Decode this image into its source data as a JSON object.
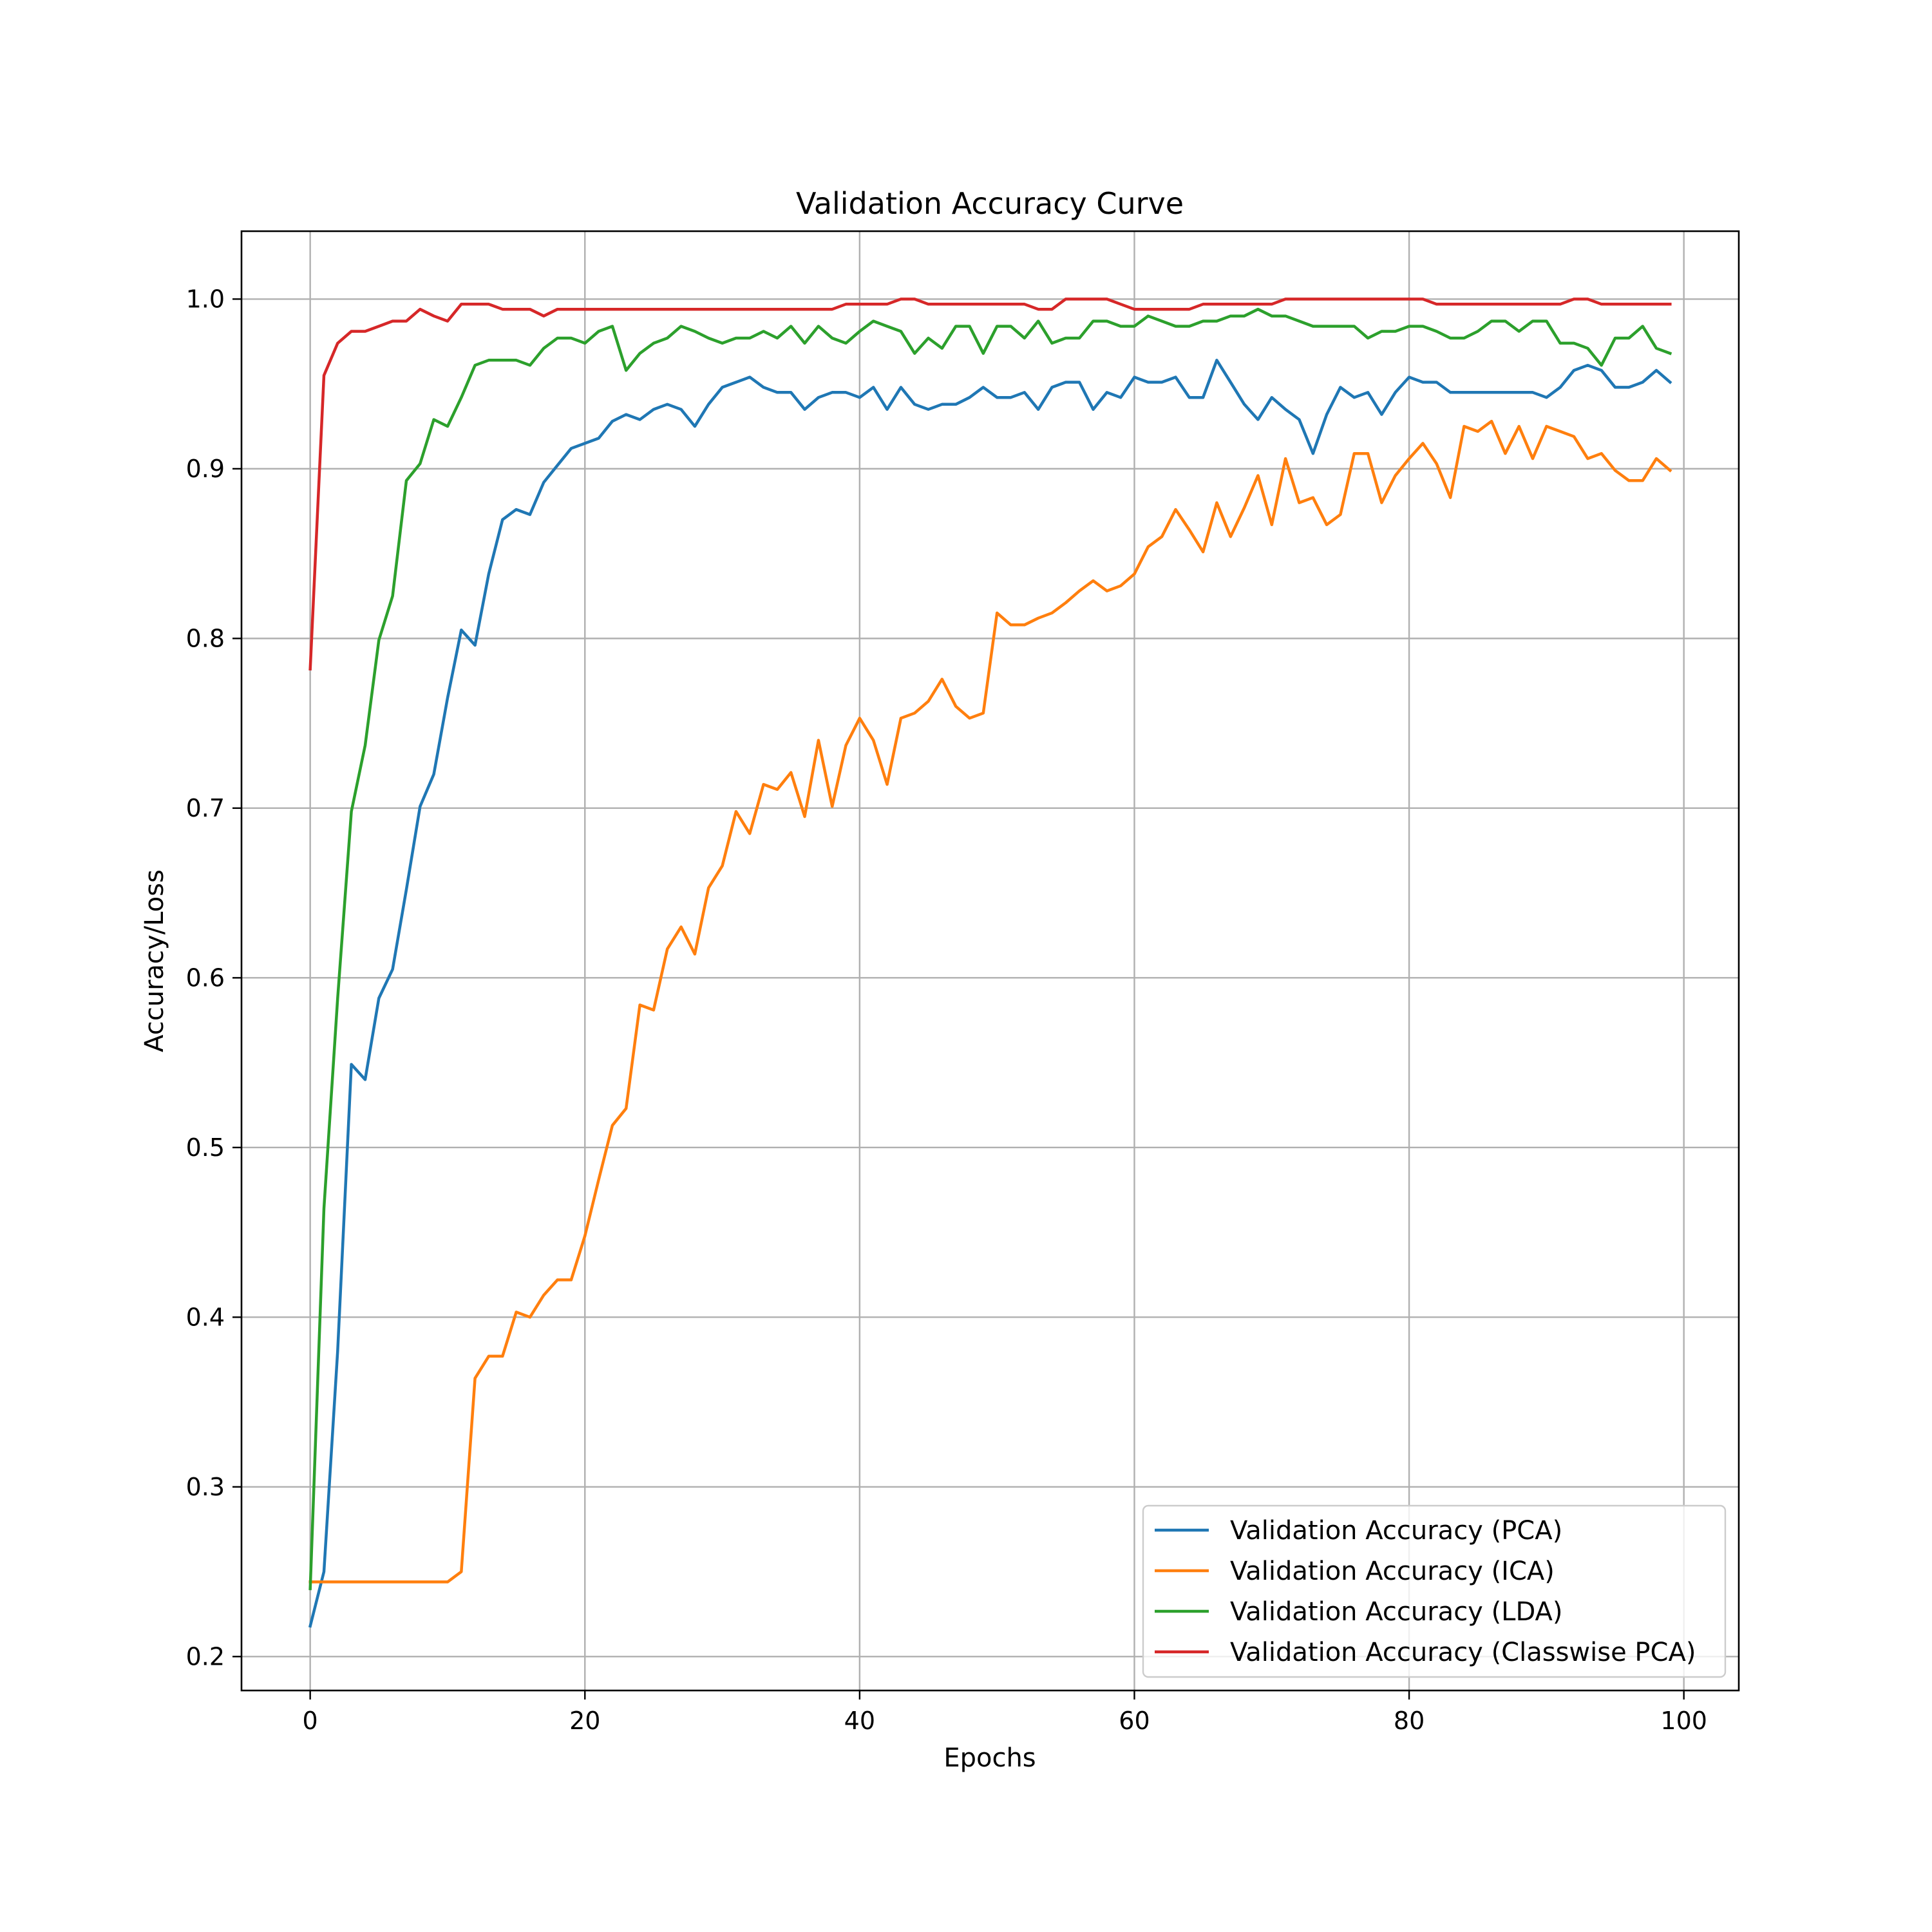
{
  "chart_data": {
    "type": "line",
    "title": "Validation Accuracy Curve",
    "xlabel": "Epochs",
    "ylabel": "Accuracy/Loss",
    "xlim": [
      -5,
      104
    ],
    "ylim": [
      0.18,
      1.04
    ],
    "x_ticks": [
      0,
      20,
      40,
      60,
      80,
      100
    ],
    "y_ticks": [
      0.2,
      0.3,
      0.4,
      0.5,
      0.6,
      0.7,
      0.8,
      0.9,
      1.0
    ],
    "x_tick_labels": [
      "0",
      "20",
      "40",
      "60",
      "80",
      "100"
    ],
    "y_tick_labels": [
      "0.2",
      "0.3",
      "0.4",
      "0.5",
      "0.6",
      "0.7",
      "0.8",
      "0.9",
      "1.0"
    ],
    "grid": true,
    "legend_position": "lower-right",
    "x": [
      0,
      1,
      2,
      3,
      4,
      5,
      6,
      7,
      8,
      9,
      10,
      11,
      12,
      13,
      14,
      15,
      16,
      17,
      18,
      19,
      20,
      21,
      22,
      23,
      24,
      25,
      26,
      27,
      28,
      29,
      30,
      31,
      32,
      33,
      34,
      35,
      36,
      37,
      38,
      39,
      40,
      41,
      42,
      43,
      44,
      45,
      46,
      47,
      48,
      49,
      50,
      51,
      52,
      53,
      54,
      55,
      56,
      57,
      58,
      59,
      60,
      61,
      62,
      63,
      64,
      65,
      66,
      67,
      68,
      69,
      70,
      71,
      72,
      73,
      74,
      75,
      76,
      77,
      78,
      79,
      80,
      81,
      82,
      83,
      84,
      85,
      86,
      87,
      88,
      89,
      90,
      91,
      92,
      93,
      94,
      95,
      96,
      97,
      98,
      99
    ],
    "series": [
      {
        "name": "Validation Accuracy (PCA)",
        "color": "#1f77b4",
        "values": [
          0.218,
          0.25,
          0.38,
          0.549,
          0.54,
          0.588,
          0.605,
          0.652,
          0.701,
          0.72,
          0.765,
          0.805,
          0.796,
          0.838,
          0.87,
          0.876,
          0.873,
          0.892,
          0.902,
          0.912,
          0.915,
          0.918,
          0.928,
          0.932,
          0.929,
          0.935,
          0.938,
          0.935,
          0.925,
          0.938,
          0.948,
          0.951,
          0.954,
          0.948,
          0.945,
          0.945,
          0.935,
          0.942,
          0.945,
          0.945,
          0.942,
          0.948,
          0.935,
          0.948,
          0.938,
          0.935,
          0.938,
          0.938,
          0.942,
          0.948,
          0.942,
          0.942,
          0.945,
          0.935,
          0.948,
          0.951,
          0.951,
          0.935,
          0.945,
          0.942,
          0.954,
          0.951,
          0.951,
          0.954,
          0.942,
          0.942,
          0.964,
          0.951,
          0.938,
          0.929,
          0.942,
          0.935,
          0.929,
          0.909,
          0.932,
          0.948,
          0.942,
          0.945,
          0.932,
          0.945,
          0.954,
          0.951,
          0.951,
          0.945,
          0.945,
          0.945,
          0.945,
          0.945,
          0.945,
          0.945,
          0.942,
          0.948,
          0.958,
          0.961,
          0.958,
          0.948,
          0.948,
          0.951,
          0.958,
          0.951
        ]
      },
      {
        "name": "Validation Accuracy (ICA)",
        "color": "#ff7f0e",
        "values": [
          0.244,
          0.244,
          0.244,
          0.244,
          0.244,
          0.244,
          0.244,
          0.244,
          0.244,
          0.244,
          0.244,
          0.25,
          0.364,
          0.377,
          0.377,
          0.403,
          0.4,
          0.413,
          0.422,
          0.422,
          0.448,
          0.481,
          0.513,
          0.523,
          0.584,
          0.581,
          0.617,
          0.63,
          0.614,
          0.653,
          0.666,
          0.698,
          0.685,
          0.714,
          0.711,
          0.721,
          0.695,
          0.74,
          0.701,
          0.737,
          0.753,
          0.74,
          0.714,
          0.753,
          0.756,
          0.763,
          0.776,
          0.76,
          0.753,
          0.756,
          0.815,
          0.808,
          0.808,
          0.812,
          0.815,
          0.821,
          0.828,
          0.834,
          0.828,
          0.831,
          0.838,
          0.854,
          0.86,
          0.876,
          0.864,
          0.851,
          0.88,
          0.86,
          0.877,
          0.896,
          0.867,
          0.906,
          0.88,
          0.883,
          0.867,
          0.873,
          0.909,
          0.909,
          0.88,
          0.896,
          0.906,
          0.915,
          0.903,
          0.883,
          0.925,
          0.922,
          0.928,
          0.909,
          0.925,
          0.906,
          0.925,
          0.922,
          0.919,
          0.906,
          0.909,
          0.899,
          0.893,
          0.893,
          0.906,
          0.899
        ]
      },
      {
        "name": "Validation Accuracy (LDA)",
        "color": "#2ca02c",
        "values": [
          0.24,
          0.464,
          0.588,
          0.698,
          0.737,
          0.799,
          0.825,
          0.893,
          0.903,
          0.929,
          0.925,
          0.942,
          0.961,
          0.964,
          0.964,
          0.964,
          0.961,
          0.971,
          0.977,
          0.977,
          0.974,
          0.981,
          0.984,
          0.958,
          0.968,
          0.974,
          0.977,
          0.984,
          0.981,
          0.977,
          0.974,
          0.977,
          0.977,
          0.981,
          0.977,
          0.984,
          0.974,
          0.984,
          0.977,
          0.974,
          0.981,
          0.987,
          0.984,
          0.981,
          0.968,
          0.977,
          0.971,
          0.984,
          0.984,
          0.968,
          0.984,
          0.984,
          0.977,
          0.987,
          0.974,
          0.977,
          0.977,
          0.987,
          0.987,
          0.984,
          0.984,
          0.99,
          0.987,
          0.984,
          0.984,
          0.987,
          0.987,
          0.99,
          0.99,
          0.994,
          0.99,
          0.99,
          0.987,
          0.984,
          0.984,
          0.984,
          0.984,
          0.977,
          0.981,
          0.981,
          0.984,
          0.984,
          0.981,
          0.977,
          0.977,
          0.981,
          0.987,
          0.987,
          0.981,
          0.987,
          0.987,
          0.974,
          0.974,
          0.971,
          0.961,
          0.977,
          0.977,
          0.984,
          0.971,
          0.968
        ]
      },
      {
        "name": "Validation Accuracy (Classwise PCA)",
        "color": "#d62728",
        "values": [
          0.782,
          0.955,
          0.974,
          0.981,
          0.981,
          0.984,
          0.987,
          0.987,
          0.994,
          0.99,
          0.987,
          0.997,
          0.997,
          0.997,
          0.994,
          0.994,
          0.994,
          0.99,
          0.994,
          0.994,
          0.994,
          0.994,
          0.994,
          0.994,
          0.994,
          0.994,
          0.994,
          0.994,
          0.994,
          0.994,
          0.994,
          0.994,
          0.994,
          0.994,
          0.994,
          0.994,
          0.994,
          0.994,
          0.994,
          0.997,
          0.997,
          0.997,
          0.997,
          1.0,
          1.0,
          0.997,
          0.997,
          0.997,
          0.997,
          0.997,
          0.997,
          0.997,
          0.997,
          0.994,
          0.994,
          1.0,
          1.0,
          1.0,
          1.0,
          0.997,
          0.994,
          0.994,
          0.994,
          0.994,
          0.994,
          0.997,
          0.997,
          0.997,
          0.997,
          0.997,
          0.997,
          1.0,
          1.0,
          1.0,
          1.0,
          1.0,
          1.0,
          1.0,
          1.0,
          1.0,
          1.0,
          1.0,
          0.997,
          0.997,
          0.997,
          0.997,
          0.997,
          0.997,
          0.997,
          0.997,
          0.997,
          0.997,
          1.0,
          1.0,
          0.997,
          0.997,
          0.997,
          0.997,
          0.997,
          0.997
        ]
      }
    ]
  }
}
